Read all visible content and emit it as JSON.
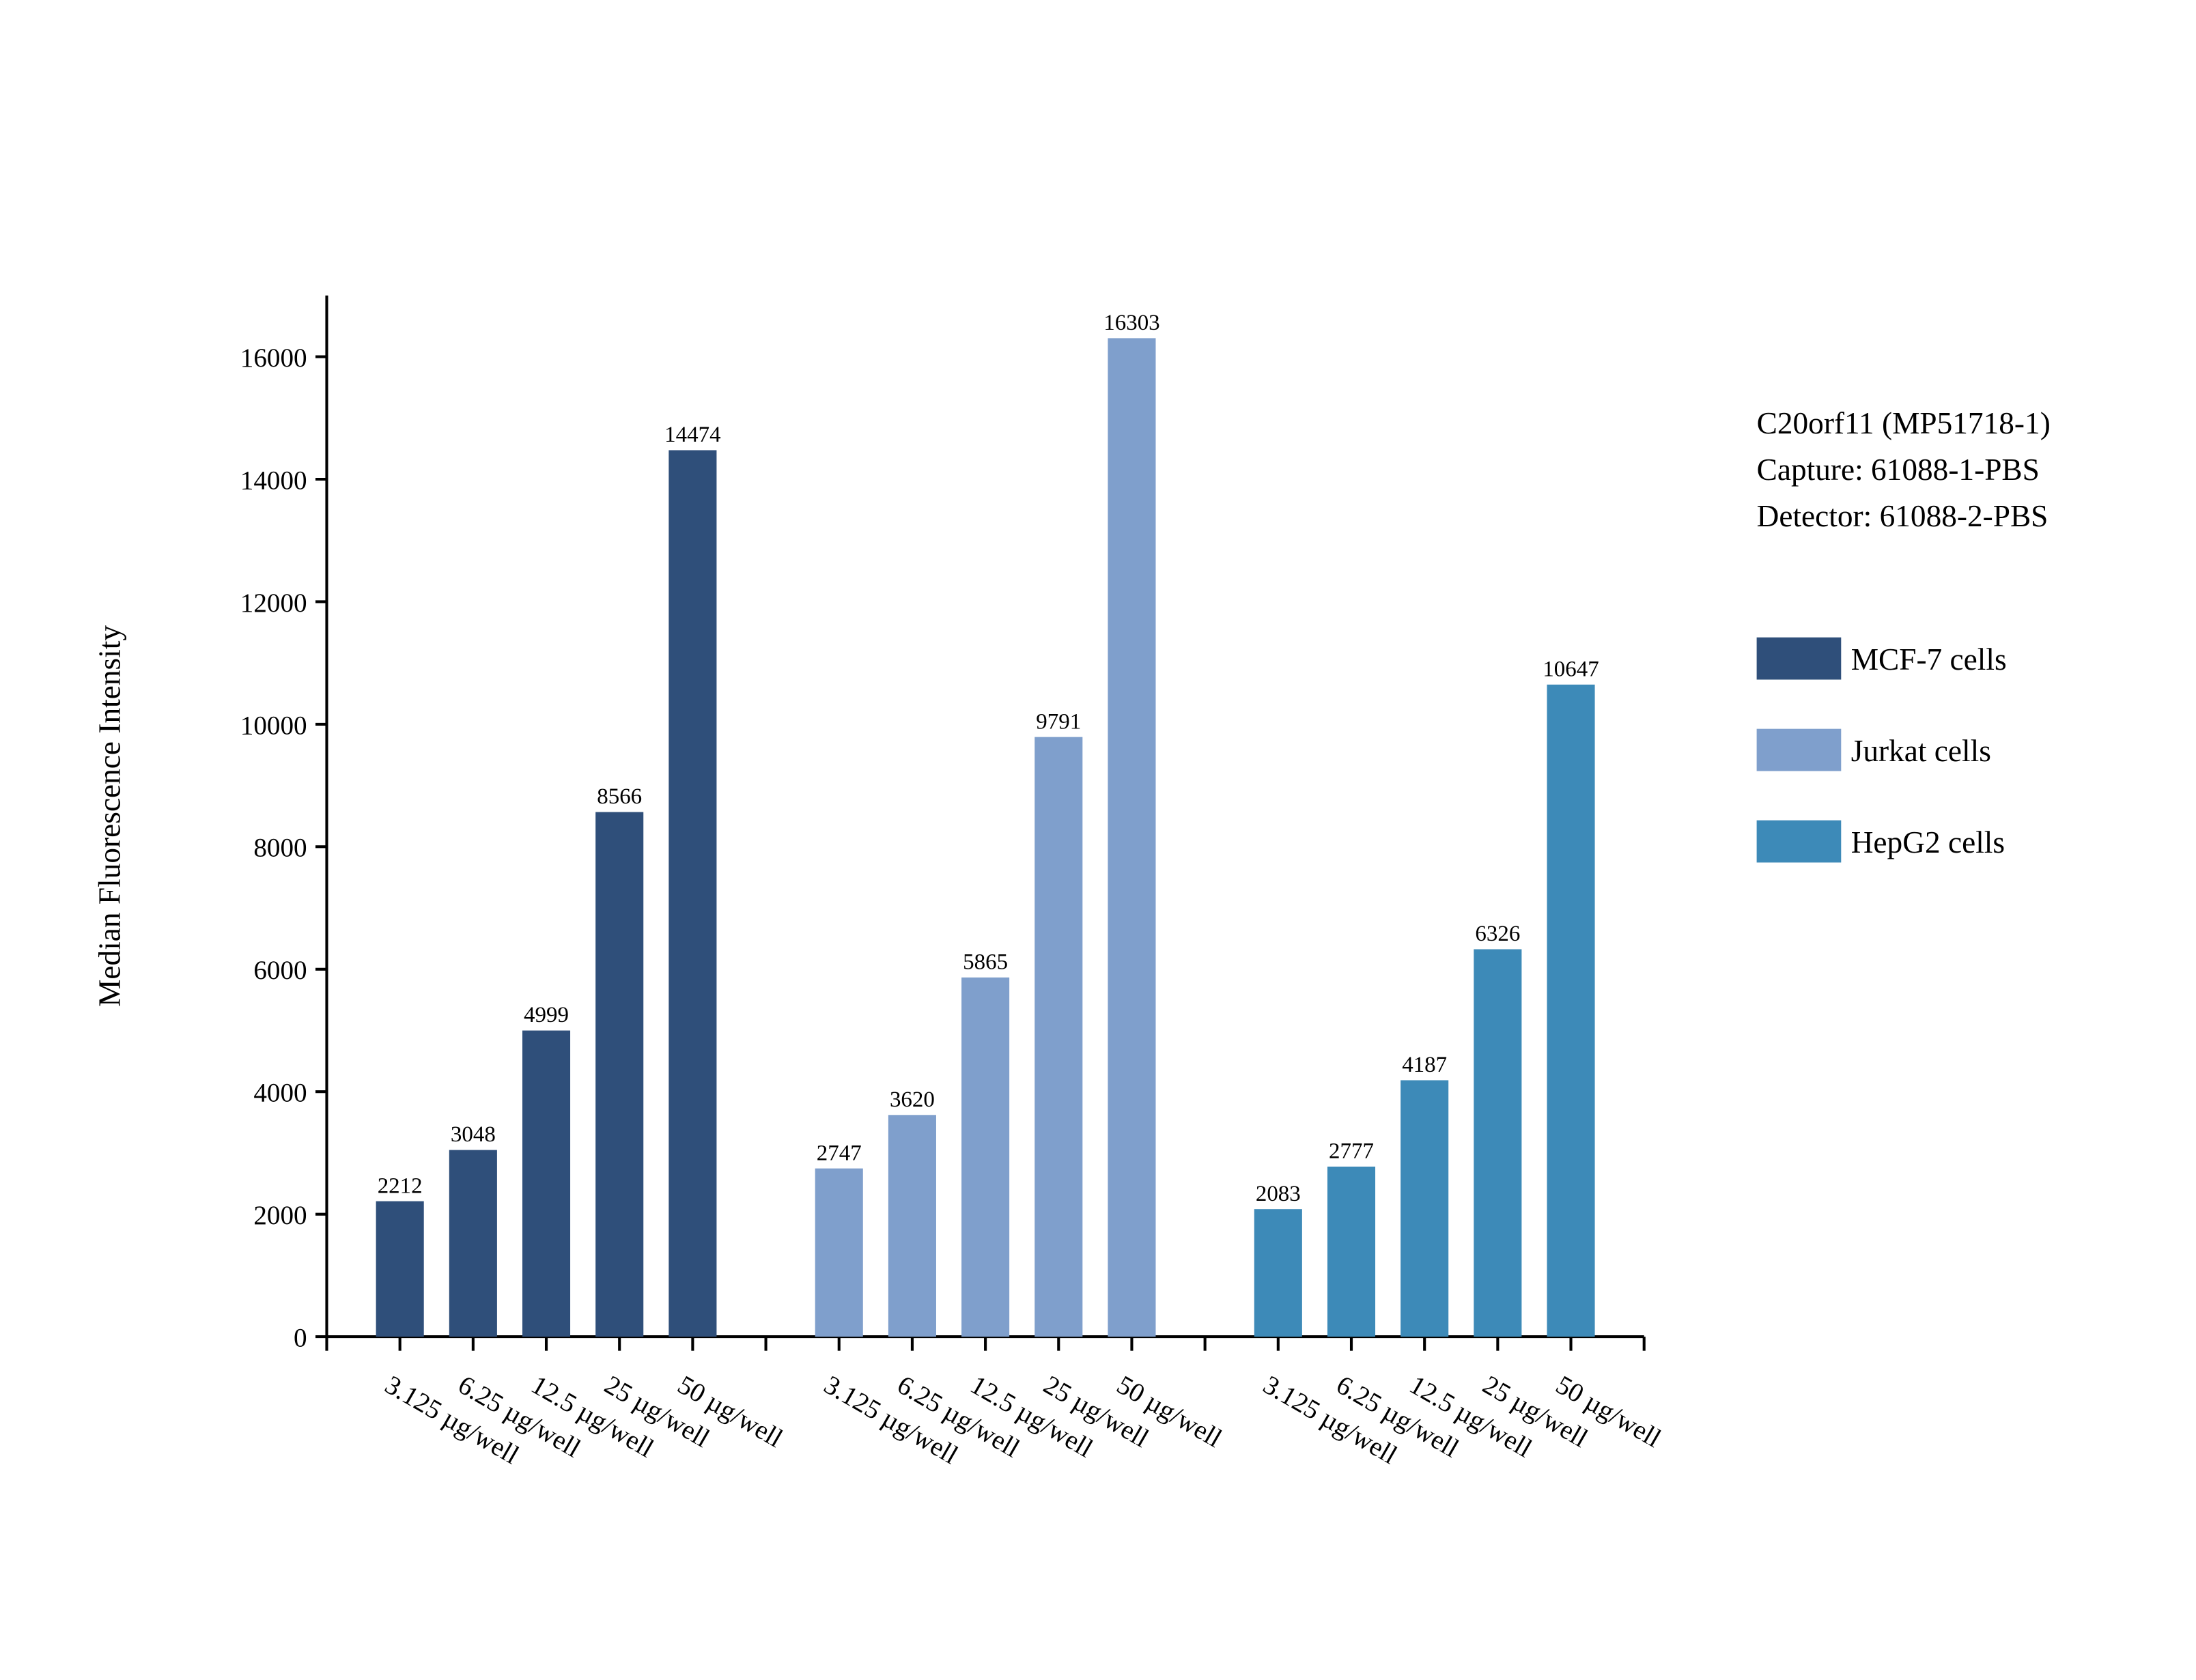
{
  "chart_data": {
    "type": "bar",
    "y_label": "Median Fluorescence Intensity",
    "annotations": [
      "C20orf11 (MP51718-1)",
      "Capture: 61088-1-PBS",
      "Detector: 61088-2-PBS"
    ],
    "categories": [
      "3.125 µg/well",
      "6.25 µg/well",
      "12.5 µg/well",
      "25 µg/well",
      "50 µg/well"
    ],
    "series": [
      {
        "name": "MCF-7 cells",
        "color": "#2f4f7a",
        "values": [
          2212,
          3048,
          4999,
          8566,
          14474
        ]
      },
      {
        "name": "Jurkat cells",
        "color": "#7f9fcc",
        "values": [
          2747,
          3620,
          5865,
          9791,
          16303
        ]
      },
      {
        "name": "HepG2 cells",
        "color": "#3d8ab8",
        "values": [
          2083,
          2777,
          4187,
          6326,
          10647
        ]
      }
    ],
    "ylim": [
      0,
      17000
    ],
    "yticks": [
      0,
      2000,
      4000,
      6000,
      8000,
      10000,
      12000,
      14000,
      16000
    ],
    "legend": "right"
  }
}
